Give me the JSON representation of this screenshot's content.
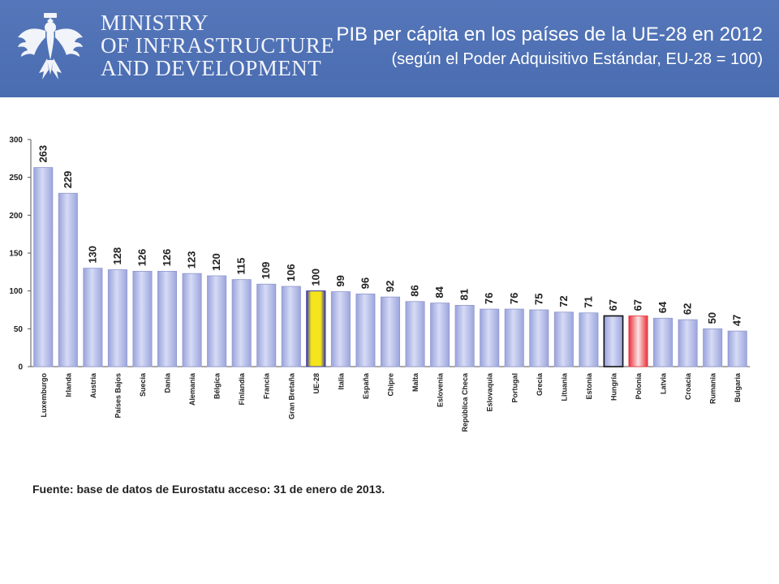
{
  "header": {
    "ministry_line1": "MINISTRY",
    "ministry_line2": "OF INFRASTRUCTURE",
    "ministry_line3": "AND DEVELOPMENT",
    "emblem_icon": "white-eagle-emblem-icon",
    "title_line1": "PIB per cápita en los países de la UE-28 en 2012",
    "title_line2": "(según el Poder Adquisitivo Estándar, EU-28 = 100)"
  },
  "chart_data": {
    "type": "bar",
    "categories": [
      "Luxemburgo",
      "Irlanda",
      "Austria",
      "Países Bajos",
      "Suecia",
      "Dania",
      "Alemania",
      "Bélgica",
      "Finlandia",
      "Francia",
      "Gran Bretaña",
      "UE-28",
      "Italia",
      "España",
      "Chipre",
      "Malta",
      "Eslovenia",
      "República Checa",
      "Eslovaquia",
      "Portugal",
      "Grecia",
      "Lituania",
      "Estonia",
      "Hungría",
      "Polonia",
      "Latvia",
      "Croacia",
      "Rumania",
      "Bulgaria"
    ],
    "values": [
      263,
      229,
      130,
      128,
      126,
      126,
      123,
      120,
      115,
      109,
      106,
      100,
      99,
      96,
      92,
      86,
      84,
      81,
      76,
      76,
      75,
      72,
      71,
      67,
      67,
      64,
      62,
      50,
      47
    ],
    "data_labels": [
      "263",
      "229",
      "130",
      "128",
      "126",
      "126",
      "123",
      "120",
      "115",
      "109",
      "106",
      "100",
      "99",
      "96",
      "92",
      "86",
      "84",
      "81",
      "76",
      "76",
      "75",
      "72",
      "71",
      "67",
      "67",
      "64",
      "62",
      "50",
      "47"
    ],
    "highlights": {
      "UE-28": "yellow",
      "Hungría": "outlined",
      "Polonia": "red"
    },
    "ylim": [
      0,
      300
    ],
    "yticks": [
      0,
      50,
      100,
      150,
      200,
      250,
      300
    ],
    "xlabel": "",
    "ylabel": "",
    "grid": false,
    "colors": {
      "bar": "#b7bfe8",
      "bar_edge": "#8f98cf",
      "ue28": "#f2e21a",
      "ue28_edge": "#3a3aa8",
      "polonia": "#e8313a",
      "hungria_edge": "#111111",
      "axis": "#555555",
      "text": "#222222"
    }
  },
  "footer": {
    "source": "Fuente: base de datos de Eurostatu acceso: 31 de enero de 2013."
  }
}
